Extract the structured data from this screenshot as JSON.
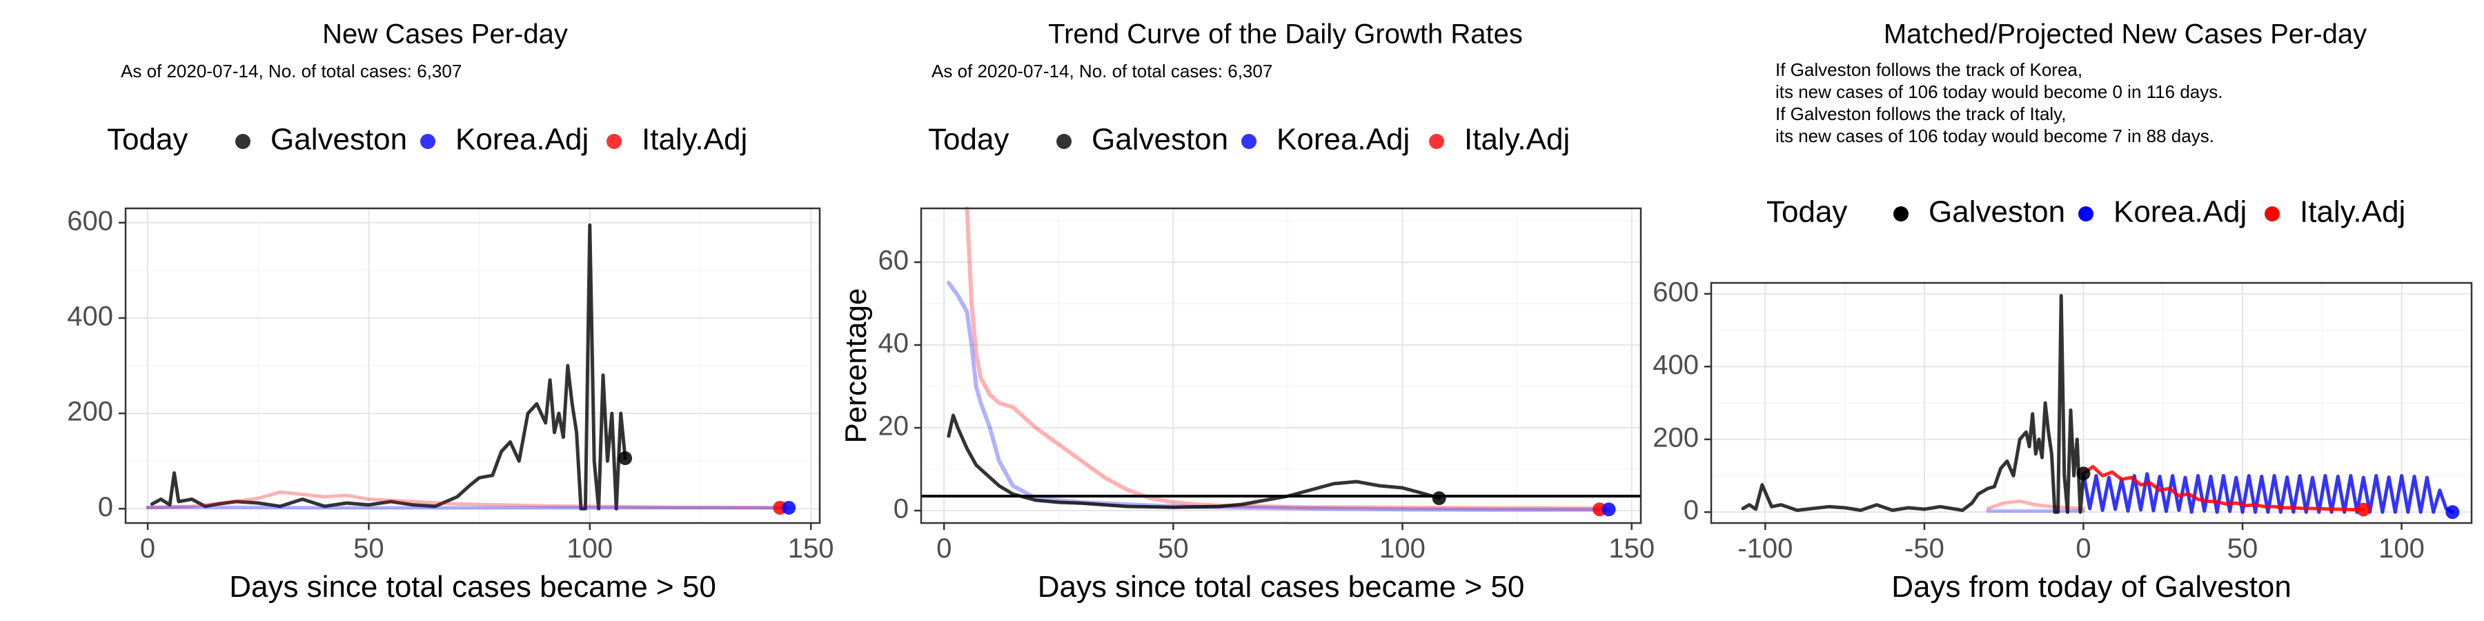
{
  "colors": {
    "galveston": "#000000",
    "korea": "#0000ff",
    "italy": "#ff0000",
    "hline": "#000000"
  },
  "chart_data": [
    {
      "type": "line",
      "title": "New Cases Per-day",
      "subtitle": "As of 2020-07-14, No. of total cases: 6,307",
      "xlabel": "Days since total cases became > 50",
      "ylabel": "",
      "xlim": [
        -5,
        152
      ],
      "ylim": [
        -30,
        630
      ],
      "xticks": [
        0,
        50,
        100,
        150
      ],
      "yticks": [
        0,
        200,
        400,
        600
      ],
      "legend": {
        "position": "top",
        "title": "Today",
        "entries": [
          "Galveston",
          "Korea.Adj",
          "Italy.Adj"
        ]
      },
      "series": [
        {
          "name": "Galveston",
          "color_key": "galveston",
          "opacity": 0.8,
          "width": 5,
          "x": [
            1,
            3,
            5,
            6,
            7,
            10,
            13,
            16,
            20,
            25,
            30,
            35,
            40,
            45,
            50,
            55,
            60,
            65,
            70,
            73,
            75,
            78,
            80,
            82,
            84,
            86,
            88,
            90,
            91,
            92,
            93,
            94,
            95,
            96,
            97,
            98,
            99,
            100,
            101,
            102,
            103,
            104,
            105,
            106,
            107,
            108
          ],
          "y": [
            10,
            20,
            8,
            75,
            15,
            20,
            5,
            10,
            15,
            12,
            5,
            20,
            5,
            12,
            8,
            15,
            8,
            5,
            25,
            50,
            65,
            70,
            120,
            140,
            100,
            200,
            220,
            180,
            270,
            160,
            200,
            150,
            300,
            220,
            160,
            0,
            0,
            595,
            100,
            0,
            280,
            100,
            200,
            0,
            200,
            106
          ]
        },
        {
          "name": "Italy.Adj",
          "color_key": "italy",
          "opacity": 0.3,
          "width": 5,
          "x": [
            0,
            10,
            20,
            25,
            30,
            35,
            40,
            45,
            50,
            60,
            70,
            80,
            90,
            100,
            110,
            120,
            130,
            143
          ],
          "y": [
            2,
            5,
            15,
            22,
            35,
            30,
            25,
            28,
            20,
            15,
            10,
            8,
            6,
            5,
            4,
            3,
            3,
            2
          ]
        },
        {
          "name": "Korea.Adj",
          "color_key": "korea",
          "opacity": 0.3,
          "width": 5,
          "x": [
            0,
            20,
            40,
            60,
            80,
            100,
            120,
            145
          ],
          "y": [
            3,
            3,
            2,
            2,
            2,
            2,
            2,
            2
          ]
        }
      ],
      "points": [
        {
          "series": "Galveston",
          "color_key": "galveston",
          "x": 108,
          "y": 106
        },
        {
          "series": "Italy.Adj",
          "color_key": "italy",
          "x": 143,
          "y": 2
        },
        {
          "series": "Korea.Adj",
          "color_key": "korea",
          "x": 145,
          "y": 2
        }
      ]
    },
    {
      "type": "line",
      "title": "Trend Curve of the Daily Growth Rates",
      "subtitle": "As of 2020-07-14, No. of total cases: 6,307",
      "xlabel": "Days since total cases became > 50",
      "ylabel": "Percentage",
      "xlim": [
        -5,
        152
      ],
      "ylim": [
        -3,
        73
      ],
      "xticks": [
        0,
        50,
        100,
        150
      ],
      "yticks": [
        0,
        20,
        40,
        60
      ],
      "hline": 3.5,
      "legend": {
        "position": "top",
        "title": "Today",
        "entries": [
          "Galveston",
          "Korea.Adj",
          "Italy.Adj"
        ]
      },
      "series": [
        {
          "name": "Italy.Adj",
          "color_key": "italy",
          "opacity": 0.3,
          "width": 6,
          "x": [
            5,
            6,
            7,
            8,
            10,
            12,
            15,
            18,
            20,
            25,
            30,
            35,
            40,
            45,
            50,
            55,
            60,
            70,
            80,
            90,
            100,
            120,
            143
          ],
          "y": [
            73,
            50,
            38,
            32,
            28,
            26,
            25,
            22,
            20,
            16,
            12,
            8,
            5,
            3,
            2,
            1.5,
            1.2,
            1,
            0.8,
            0.8,
            0.7,
            0.6,
            0.5
          ]
        },
        {
          "name": "Korea.Adj",
          "color_key": "korea",
          "opacity": 0.3,
          "width": 6,
          "x": [
            1,
            3,
            5,
            6,
            7,
            8,
            10,
            12,
            15,
            20,
            30,
            40,
            50,
            60,
            80,
            100,
            120,
            145
          ],
          "y": [
            55,
            52,
            48,
            40,
            30,
            26,
            20,
            12,
            6,
            3,
            2,
            1.5,
            1,
            0.8,
            0.5,
            0.3,
            0.2,
            0.2
          ]
        },
        {
          "name": "Galveston",
          "color_key": "galveston",
          "opacity": 0.8,
          "width": 5,
          "x": [
            1,
            2,
            3,
            5,
            7,
            10,
            12,
            15,
            20,
            25,
            30,
            40,
            50,
            60,
            65,
            70,
            75,
            80,
            85,
            90,
            95,
            100,
            105,
            108
          ],
          "y": [
            18,
            23,
            20,
            15,
            11,
            8,
            6,
            4,
            2.5,
            2,
            1.8,
            1,
            0.8,
            1,
            1.5,
            2.5,
            3.5,
            5,
            6.5,
            7,
            6,
            5.5,
            4,
            3
          ]
        }
      ],
      "points": [
        {
          "series": "Galveston",
          "color_key": "galveston",
          "x": 108,
          "y": 3
        },
        {
          "series": "Italy.Adj",
          "color_key": "italy",
          "x": 143,
          "y": 0.3
        },
        {
          "series": "Korea.Adj",
          "color_key": "korea",
          "x": 145,
          "y": 0.3
        }
      ]
    },
    {
      "type": "line",
      "title": "Matched/Projected New Cases Per-day",
      "subtitle_lines": [
        "If Galveston follows the track of Korea,",
        "its new cases of 106 today would become 0 in 116 days.",
        "If Galveston follows the track of Italy,",
        "its new cases of 106 today would become 7 in 88 days."
      ],
      "xlabel": "Days from today of Galveston",
      "ylabel": "",
      "xlim": [
        -117,
        122
      ],
      "ylim": [
        -30,
        630
      ],
      "xticks": [
        -100,
        -50,
        0,
        50,
        100
      ],
      "yticks": [
        0,
        200,
        400,
        600
      ],
      "legend": {
        "position": "top",
        "title": "Today",
        "entries": [
          "Galveston",
          "Korea.Adj",
          "Italy.Adj"
        ]
      },
      "series": [
        {
          "name": "Italy.Adj",
          "color_key": "italy",
          "opacity": 0.3,
          "width": 5,
          "x": [
            -30,
            -25,
            -20,
            -15,
            -10,
            -5,
            0
          ],
          "y": [
            10,
            25,
            30,
            20,
            15,
            12,
            10
          ]
        },
        {
          "name": "Korea.Adj",
          "color_key": "korea",
          "opacity": 0.3,
          "width": 5,
          "x": [
            -30,
            -20,
            -10,
            0
          ],
          "y": [
            3,
            3,
            3,
            3
          ]
        },
        {
          "name": "Galveston",
          "color_key": "galveston",
          "opacity": 0.8,
          "width": 5,
          "x": [
            -107,
            -105,
            -103,
            -101,
            -98,
            -95,
            -90,
            -85,
            -80,
            -75,
            -70,
            -65,
            -60,
            -55,
            -50,
            -45,
            -40,
            -38,
            -35,
            -33,
            -30,
            -28,
            -26,
            -24,
            -22,
            -20,
            -18,
            -17,
            -16,
            -15,
            -14,
            -13,
            -12,
            -11,
            -10,
            -9,
            -8,
            -7,
            -6,
            -5,
            -4,
            -3,
            -2,
            -1,
            0
          ],
          "y": [
            10,
            20,
            8,
            75,
            15,
            20,
            5,
            10,
            15,
            12,
            5,
            20,
            5,
            12,
            8,
            15,
            8,
            5,
            25,
            50,
            65,
            70,
            120,
            140,
            100,
            200,
            220,
            180,
            270,
            160,
            200,
            150,
            300,
            220,
            160,
            0,
            0,
            595,
            100,
            0,
            280,
            100,
            200,
            0,
            106
          ]
        },
        {
          "name": "Korea.Adj",
          "color_key": "korea",
          "opacity": 0.8,
          "width": 5,
          "oscillate": true,
          "x": [
            0,
            2,
            4,
            6,
            8,
            10,
            12,
            14,
            16,
            18,
            20,
            22,
            24,
            26,
            28,
            30,
            32,
            34,
            36,
            38,
            40,
            42,
            44,
            46,
            48,
            50,
            52,
            54,
            56,
            58,
            60,
            62,
            64,
            66,
            68,
            70,
            72,
            74,
            76,
            78,
            80,
            82,
            84,
            86,
            88,
            90,
            92,
            94,
            96,
            98,
            100,
            102,
            104,
            106,
            108,
            110,
            112,
            114,
            116
          ],
          "y": [
            106,
            10,
            100,
            5,
            95,
            8,
            90,
            3,
            100,
            6,
            105,
            4,
            98,
            2,
            100,
            5,
            95,
            0,
            100,
            3,
            98,
            0,
            100,
            2,
            95,
            0,
            100,
            0,
            98,
            0,
            100,
            0,
            96,
            0,
            100,
            0,
            95,
            0,
            100,
            0,
            98,
            0,
            100,
            0,
            95,
            0,
            100,
            0,
            96,
            0,
            100,
            0,
            98,
            0,
            95,
            0,
            60,
            10,
            0
          ]
        },
        {
          "name": "Italy.Adj",
          "color_key": "italy",
          "opacity": 0.85,
          "width": 5,
          "x": [
            0,
            3,
            6,
            9,
            12,
            15,
            18,
            21,
            24,
            27,
            30,
            33,
            36,
            39,
            42,
            45,
            48,
            51,
            54,
            57,
            60,
            63,
            66,
            69,
            72,
            75,
            78,
            81,
            84,
            88
          ],
          "y": [
            106,
            125,
            100,
            110,
            90,
            95,
            75,
            80,
            60,
            65,
            45,
            50,
            35,
            30,
            28,
            22,
            25,
            18,
            20,
            15,
            15,
            12,
            12,
            10,
            10,
            9,
            8,
            8,
            7,
            7
          ]
        }
      ],
      "points": [
        {
          "series": "Galveston",
          "color_key": "galveston",
          "x": 0,
          "y": 106
        },
        {
          "series": "Italy.Adj",
          "color_key": "italy",
          "x": 88,
          "y": 7
        },
        {
          "series": "Korea.Adj",
          "color_key": "korea",
          "x": 116,
          "y": 0
        }
      ]
    }
  ]
}
